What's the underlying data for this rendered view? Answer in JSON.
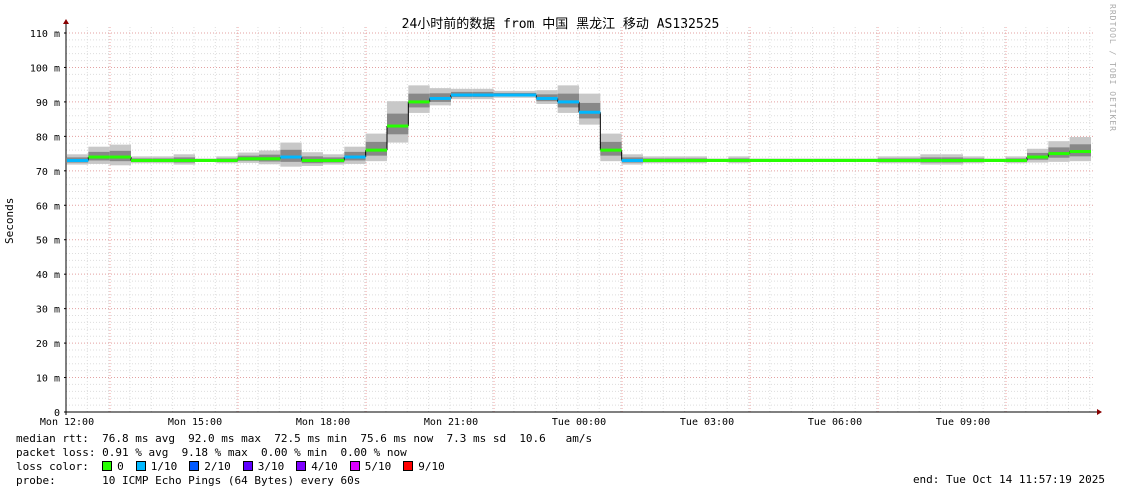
{
  "chart_data": {
    "type": "line",
    "title": "24小时前的数据 from 中国 黑龙江 移动 AS132525",
    "ylabel": "Seconds",
    "ylim": [
      0,
      110
    ],
    "yticks": [
      "0",
      "10 m",
      "20 m",
      "30 m",
      "40 m",
      "50 m",
      "60 m",
      "70 m",
      "80 m",
      "90 m",
      "100 m",
      "110 m"
    ],
    "xticks": [
      "Mon 12:00",
      "Mon 15:00",
      "Mon 18:00",
      "Mon 21:00",
      "Tue 00:00",
      "Tue 03:00",
      "Tue 06:00",
      "Tue 09:00"
    ],
    "grid": true,
    "watermark": "RRDTOOL / TOBI OETIKER",
    "series_unit": "ms",
    "points": [
      [
        "Mon 12:00",
        73,
        1,
        3
      ],
      [
        "Mon 12:30",
        74,
        0,
        5
      ],
      [
        "Mon 13:00",
        74,
        0,
        6
      ],
      [
        "Mon 13:30",
        73,
        0,
        2
      ],
      [
        "Mon 14:00",
        73,
        0,
        2
      ],
      [
        "Mon 14:30",
        73,
        0,
        3
      ],
      [
        "Mon 15:00",
        73,
        0,
        1
      ],
      [
        "Mon 15:30",
        73,
        0,
        2
      ],
      [
        "Mon 16:00",
        73.5,
        0,
        3
      ],
      [
        "Mon 16:30",
        73.5,
        0,
        4
      ],
      [
        "Mon 17:00",
        74,
        1,
        7
      ],
      [
        "Mon 17:30",
        73,
        0,
        4
      ],
      [
        "Mon 18:00",
        73,
        0,
        3
      ],
      [
        "Mon 18:30",
        74,
        1,
        5
      ],
      [
        "Mon 19:00",
        76,
        0,
        8
      ],
      [
        "Mon 19:30",
        83,
        0,
        12
      ],
      [
        "Mon 20:00",
        90,
        0,
        8
      ],
      [
        "Mon 20:30",
        91,
        1,
        5
      ],
      [
        "Mon 21:00",
        92,
        1,
        3
      ],
      [
        "Mon 21:30",
        92,
        1,
        3
      ],
      [
        "Mon 22:00",
        92,
        1,
        2
      ],
      [
        "Mon 22:30",
        92,
        1,
        2
      ],
      [
        "Mon 23:00",
        91,
        1,
        4
      ],
      [
        "Mon 23:30",
        90,
        1,
        8
      ],
      [
        "Tue 00:00",
        87,
        1,
        9
      ],
      [
        "Tue 00:30",
        76,
        0,
        8
      ],
      [
        "Tue 01:00",
        73,
        1,
        3
      ],
      [
        "Tue 01:30",
        73,
        0,
        2
      ],
      [
        "Tue 02:00",
        73,
        0,
        2
      ],
      [
        "Tue 02:30",
        73,
        0,
        2
      ],
      [
        "Tue 03:00",
        73,
        0,
        1
      ],
      [
        "Tue 03:30",
        73,
        0,
        2
      ],
      [
        "Tue 04:00",
        73,
        0,
        1
      ],
      [
        "Tue 04:30",
        73,
        0,
        1
      ],
      [
        "Tue 05:00",
        73,
        0,
        1
      ],
      [
        "Tue 05:30",
        73,
        0,
        1
      ],
      [
        "Tue 06:00",
        73,
        0,
        1
      ],
      [
        "Tue 06:30",
        73,
        0,
        1
      ],
      [
        "Tue 07:00",
        73,
        0,
        2
      ],
      [
        "Tue 07:30",
        73,
        0,
        2
      ],
      [
        "Tue 08:00",
        73,
        0,
        3
      ],
      [
        "Tue 08:30",
        73,
        0,
        3
      ],
      [
        "Tue 09:00",
        73,
        0,
        2
      ],
      [
        "Tue 09:30",
        73,
        0,
        1
      ],
      [
        "Tue 10:00",
        73,
        0,
        2
      ],
      [
        "Tue 10:30",
        74,
        0,
        4
      ],
      [
        "Tue 11:00",
        75,
        0,
        6
      ],
      [
        "Tue 11:30",
        75.6,
        0,
        7
      ]
    ],
    "point_fields": [
      "time",
      "median_ms",
      "loss_color_index",
      "spread_ms"
    ]
  },
  "legend": {
    "median_rtt": "median rtt:  76.8 ms avg  92.0 ms max  72.5 ms min  75.6 ms now  7.3 ms sd  10.6   am/s",
    "packet_loss": "packet loss: 0.91 % avg  9.18 % max  0.00 % min  0.00 % now",
    "loss_label": "loss color:  ",
    "loss_colors": [
      {
        "label": "0",
        "color": "#26ff00"
      },
      {
        "label": "1/10",
        "color": "#00b8ff"
      },
      {
        "label": "2/10",
        "color": "#0059ff"
      },
      {
        "label": "3/10",
        "color": "#5e00ff"
      },
      {
        "label": "4/10",
        "color": "#7e00ff"
      },
      {
        "label": "5/10",
        "color": "#dd00ff"
      },
      {
        "label": "9/10",
        "color": "#ff0000"
      }
    ],
    "probe": "probe:       10 ICMP Echo Pings (64 Bytes) every 60s",
    "end": "end: Tue Oct 14 11:57:19 2025"
  }
}
